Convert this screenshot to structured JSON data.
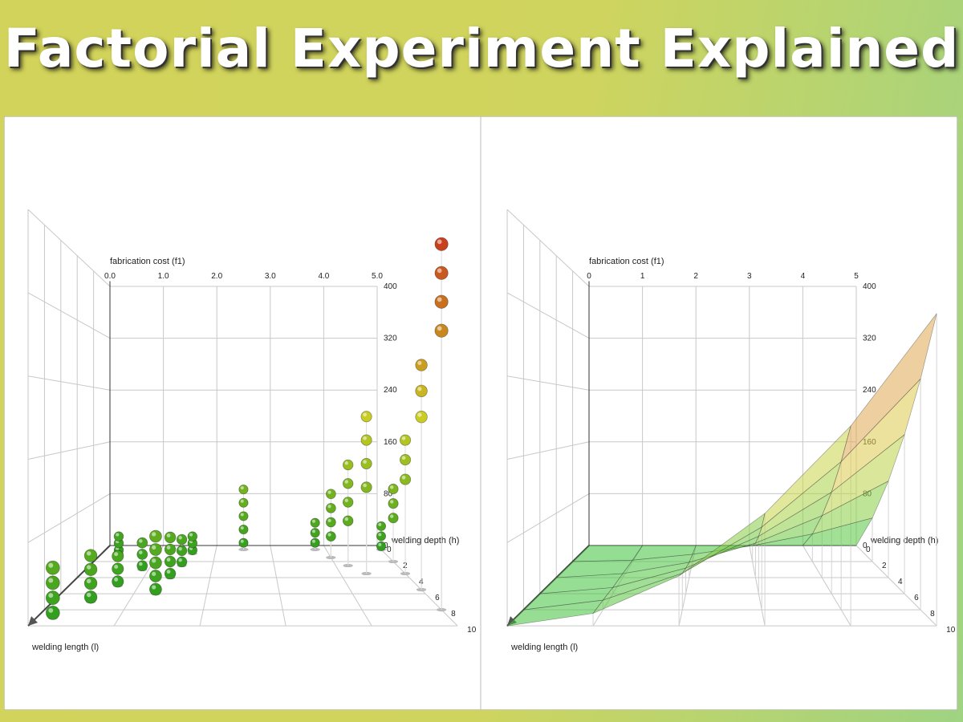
{
  "page_title": "Factorial Experiment Explained",
  "chart_data": [
    {
      "type": "scatter3d",
      "y_label": "fabrication cost (f1)",
      "x_label": "welding depth (h)",
      "z_label": "welding length (l)",
      "xlim": [
        0,
        5
      ],
      "zlim": [
        0,
        10
      ],
      "ylim": [
        0,
        400
      ],
      "xticks": [
        {
          "value": 0,
          "label": "0.0"
        },
        {
          "value": 1,
          "label": "1.0"
        },
        {
          "value": 2,
          "label": "2.0"
        },
        {
          "value": 3,
          "label": "3.0"
        },
        {
          "value": 4,
          "label": "4.0"
        },
        {
          "value": 5,
          "label": "5.0"
        }
      ],
      "zticks": [
        0,
        2,
        4,
        6,
        8,
        10
      ],
      "yticks": [
        0,
        80,
        160,
        240,
        320,
        400
      ],
      "colors": [
        "#2f9e1e",
        "#c9cc22",
        "#c8321e"
      ],
      "x": [
        0.2,
        0.2,
        0.2,
        0.2,
        0.5,
        0.5,
        0.5,
        0.5,
        0.7,
        0.7,
        0.7,
        0.9,
        0.9,
        0.9,
        0.3,
        0.3,
        0.3,
        1.3,
        1.3,
        1.3,
        1.3,
        1.3,
        1.4,
        1.4,
        1.4,
        1.4,
        1.5,
        1.5,
        1.5,
        1.6,
        1.6,
        1.6,
        2.5,
        2.5,
        2.5,
        2.5,
        2.5,
        3.8,
        3.8,
        3.8,
        4.0,
        4.0,
        4.0,
        4.0,
        4.2,
        4.2,
        4.2,
        4.2,
        4.4,
        4.4,
        4.4,
        4.4,
        5,
        5,
        5,
        5,
        5,
        5,
        5,
        5,
        5,
        5,
        5,
        5,
        5,
        5,
        5,
        5
      ],
      "z": [
        9,
        9,
        9,
        9,
        7,
        7,
        7,
        7,
        5,
        5,
        5,
        3,
        3,
        3,
        1,
        1,
        1,
        6,
        6,
        6,
        6,
        6,
        4,
        4,
        4,
        4,
        2.5,
        2.5,
        2.5,
        1,
        1,
        1,
        0.5,
        0.5,
        0.5,
        0.5,
        0.5,
        0.5,
        0.5,
        0.5,
        1.5,
        1.5,
        1.5,
        1.5,
        2.5,
        2.5,
        2.5,
        2.5,
        3.5,
        3.5,
        3.5,
        3.5,
        0.5,
        0.5,
        0.5,
        2,
        2,
        2,
        3.5,
        3.5,
        3.5,
        5.5,
        5.5,
        5.5,
        8,
        8,
        8,
        8
      ],
      "values": [
        5,
        20,
        35,
        50,
        5,
        20,
        35,
        50,
        5,
        20,
        35,
        5,
        20,
        35,
        5,
        15,
        25,
        5,
        20,
        35,
        50,
        65,
        5,
        20,
        35,
        50,
        5,
        20,
        35,
        5,
        15,
        25,
        10,
        30,
        50,
        70,
        90,
        10,
        25,
        40,
        30,
        50,
        70,
        90,
        60,
        85,
        110,
        135,
        110,
        140,
        170,
        200,
        5,
        20,
        35,
        60,
        80,
        100,
        120,
        145,
        170,
        200,
        230,
        260,
        290,
        320,
        350,
        380
      ]
    },
    {
      "type": "surface3d",
      "y_label": "fabrication cost (f1)",
      "x_label": "welding depth (h)",
      "z_label": "welding length (l)",
      "xlim": [
        0,
        5
      ],
      "zlim": [
        0,
        10
      ],
      "ylim": [
        0,
        400
      ],
      "xticks": [
        0,
        1,
        2,
        3,
        4,
        5
      ],
      "zticks": [
        0,
        2,
        4,
        6,
        8,
        10
      ],
      "yticks": [
        0,
        80,
        160,
        240,
        320,
        400
      ],
      "colors": [
        "#3cc23c",
        "#dcd84a",
        "#e46a5a"
      ],
      "x": [
        0,
        1,
        2,
        3,
        4,
        5
      ],
      "z": [
        0,
        2,
        4,
        6,
        8,
        10
      ],
      "values": [
        [
          0,
          0,
          0,
          0,
          0,
          0
        ],
        [
          0,
          2,
          10,
          22,
          38,
          60
        ],
        [
          0,
          5,
          19,
          43,
          77,
          120
        ],
        [
          0,
          7,
          29,
          65,
          115,
          180
        ],
        [
          0,
          10,
          38,
          86,
          154,
          240
        ],
        [
          0,
          12,
          48,
          108,
          192,
          300
        ]
      ]
    }
  ]
}
